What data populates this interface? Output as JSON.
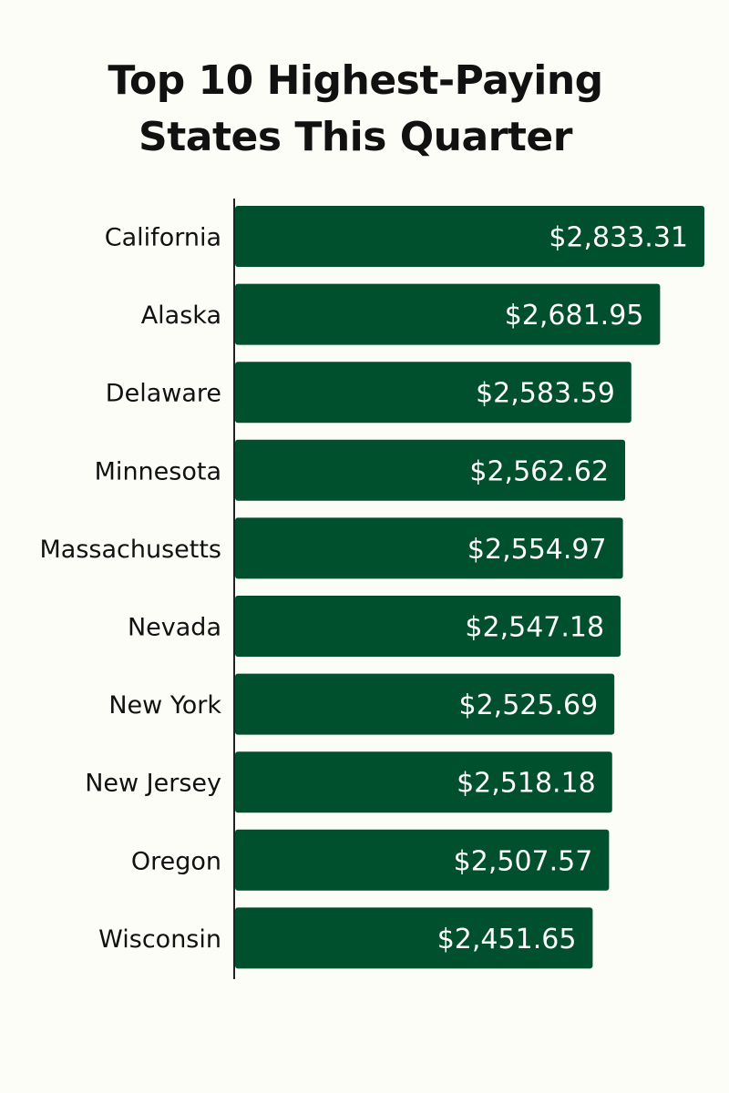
{
  "chart_data": {
    "type": "bar",
    "orientation": "horizontal",
    "title_lines": [
      "Top 10 Highest-Paying",
      "States This Quarter"
    ],
    "categories": [
      "California",
      "Alaska",
      "Delaware",
      "Minnesota",
      "Massachusetts",
      "Nevada",
      "New York",
      "New Jersey",
      "Oregon",
      "Wisconsin"
    ],
    "values": [
      2833.31,
      2681.95,
      2583.59,
      2562.62,
      2554.97,
      2547.18,
      2525.69,
      2518.18,
      2507.57,
      2451.65
    ],
    "labels": [
      "$2,833.31",
      "$2,681.95",
      "$2,583.59",
      "$2,562.62",
      "$2,554.97",
      "$2,547.18",
      "$2,525.69",
      "$2,518.18",
      "$2,507.57",
      "$2,451.65"
    ],
    "xlim": [
      1230,
      2840
    ],
    "grid": false,
    "bar_color": "#00502d",
    "xlabel": "",
    "ylabel": ""
  }
}
